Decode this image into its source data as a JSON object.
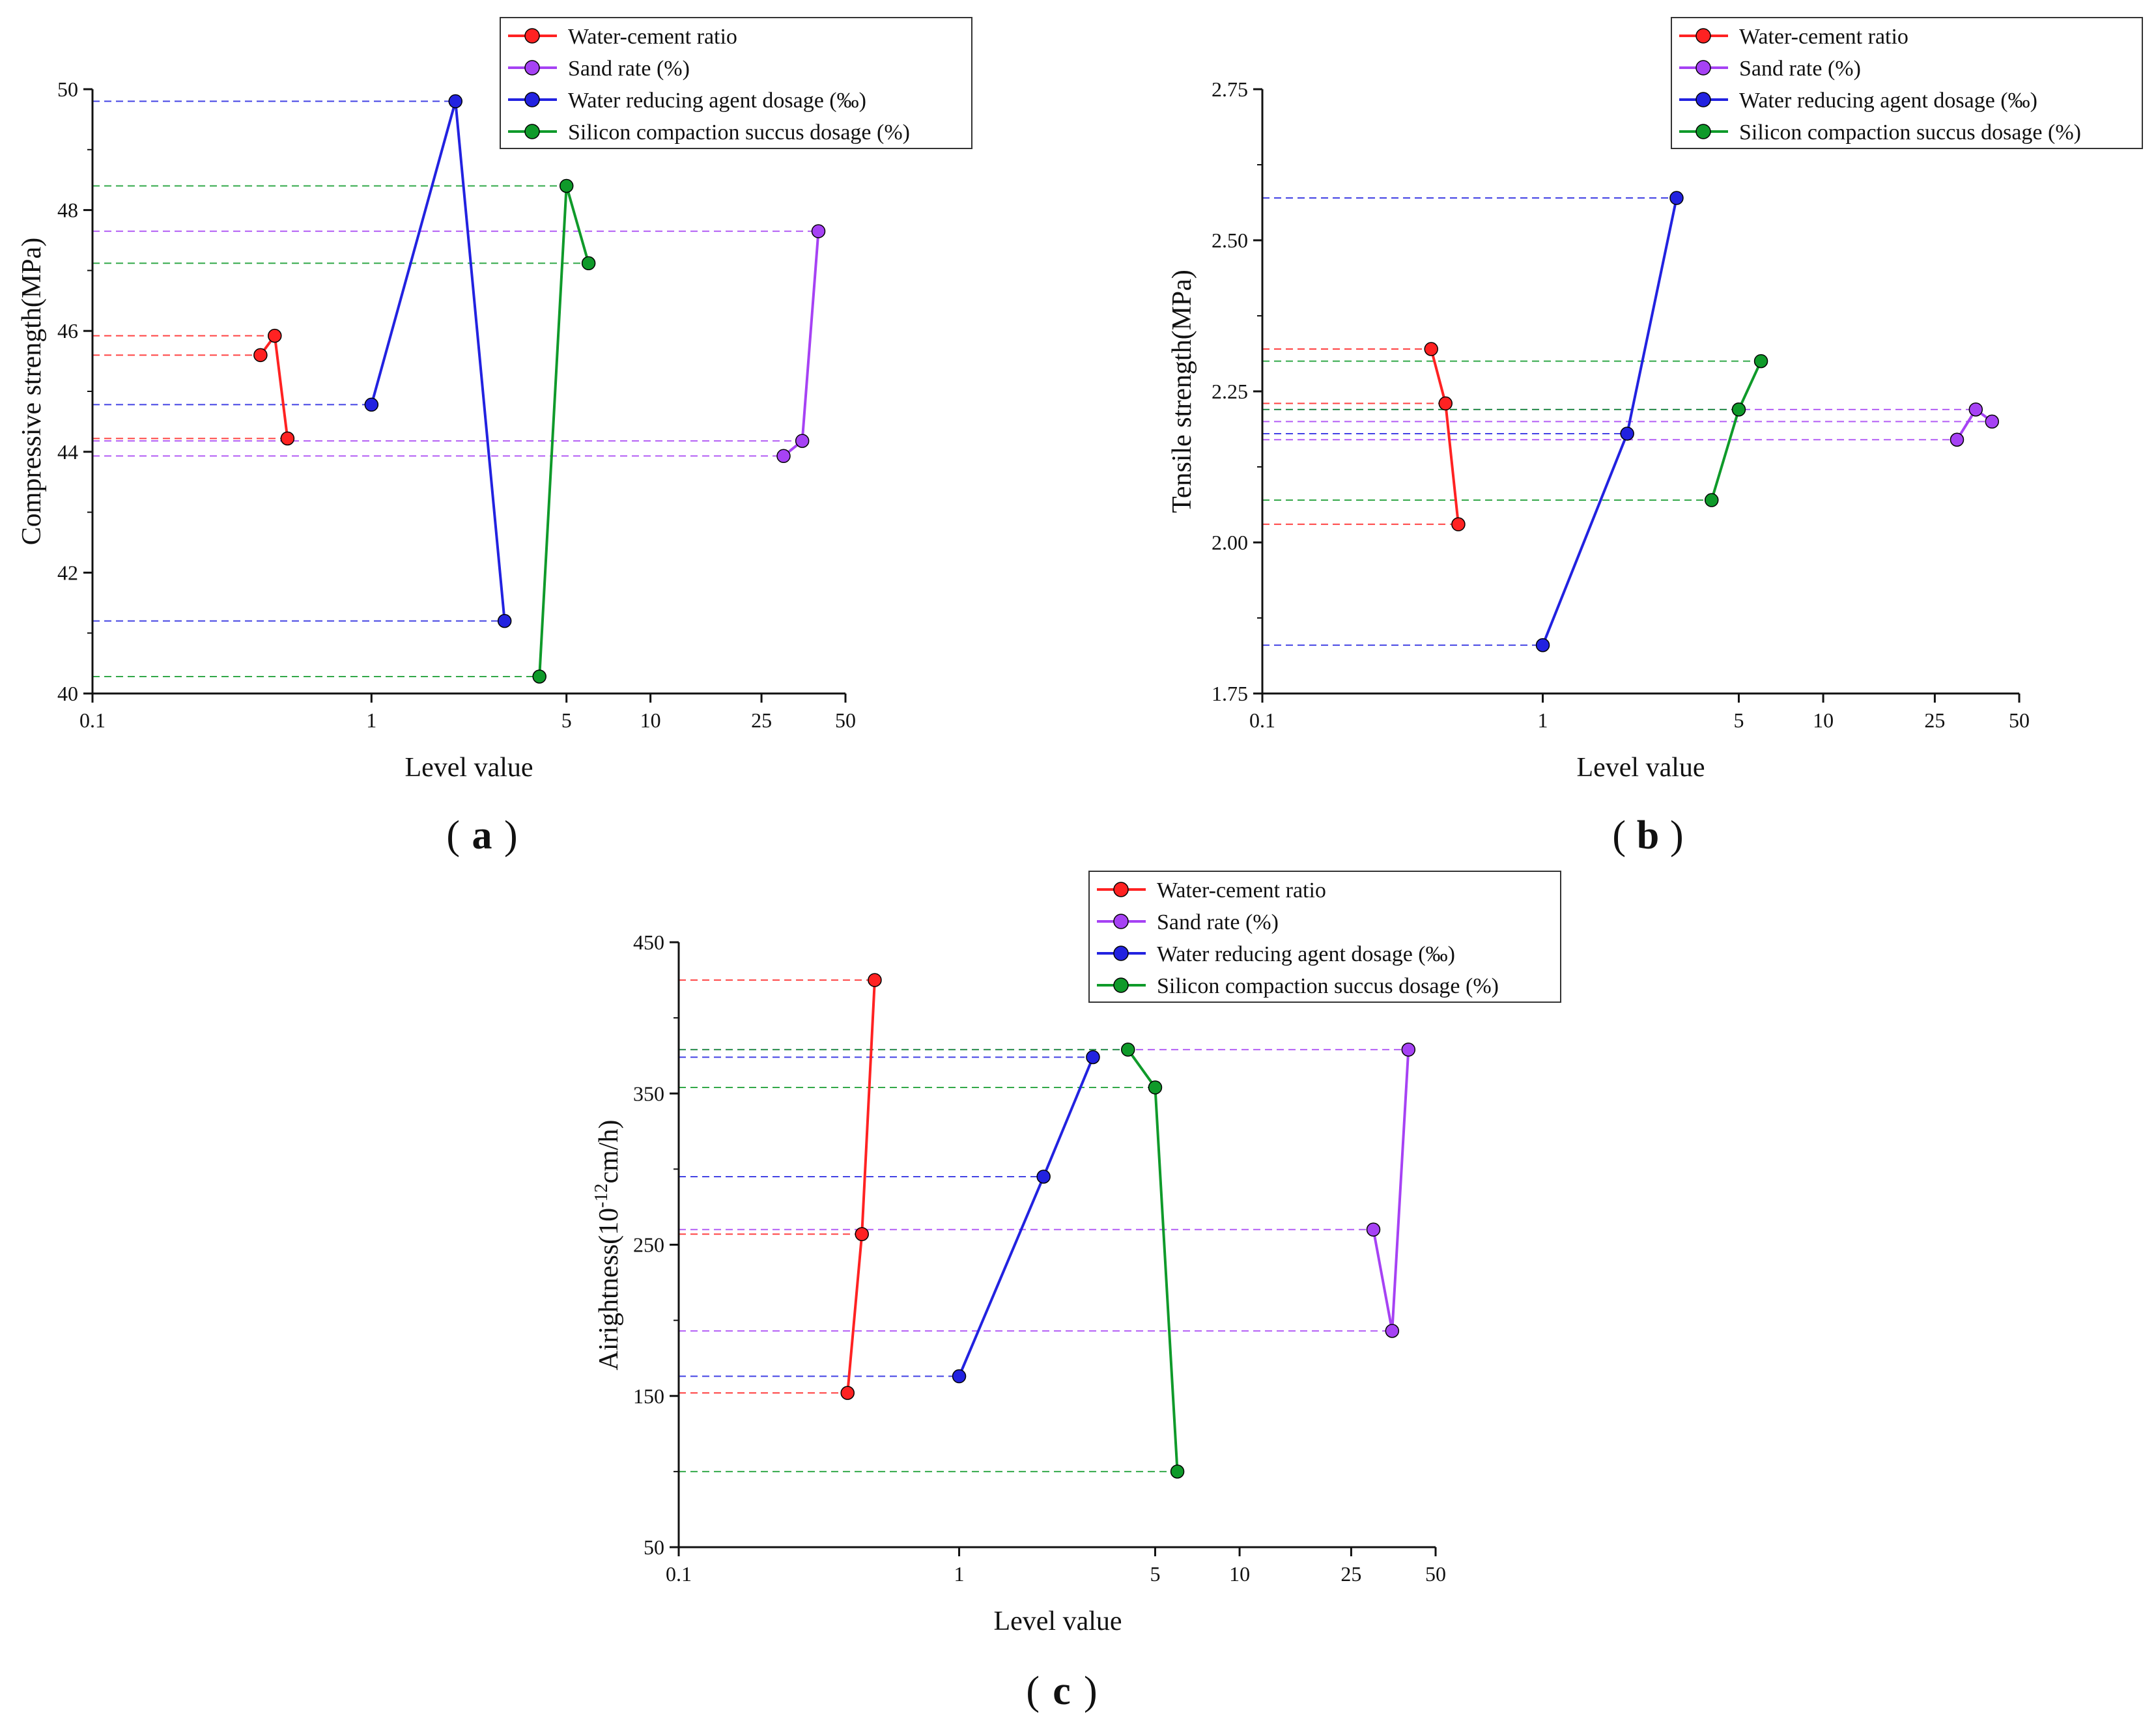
{
  "chart_data": [
    {
      "panel": "a",
      "type": "line",
      "xscale": "log",
      "xlabel": "Level value",
      "ylabel": "Compressive strength(MPa)",
      "xticks": [
        0.1,
        1,
        5,
        10,
        25,
        50
      ],
      "xtick_labels": [
        "0.1",
        "1",
        "5",
        "10",
        "25",
        "50"
      ],
      "yticks": [
        40,
        42,
        44,
        46,
        48,
        50
      ],
      "ytick_labels": [
        "40",
        "42",
        "44",
        "46",
        "48",
        "50"
      ],
      "ylim": [
        40,
        50
      ],
      "legend_position": "top-right",
      "series": [
        {
          "name": "Water-cement ratio",
          "color": "#ff2222",
          "x": [
            0.4,
            0.45,
            0.5
          ],
          "y": [
            45.6,
            45.92,
            44.22
          ]
        },
        {
          "name": "Sand rate (%)",
          "color": "#a642f4",
          "x": [
            30,
            35,
            40
          ],
          "y": [
            43.93,
            44.18,
            47.65
          ]
        },
        {
          "name": "Water reducing agent dosage (‰)",
          "color": "#2222e0",
          "x": [
            1,
            2,
            3
          ],
          "y": [
            44.78,
            49.8,
            41.2
          ]
        },
        {
          "name": "Silicon compaction succus dosage (%)",
          "color": "#0f9a2a",
          "x": [
            4,
            5,
            6
          ],
          "y": [
            40.28,
            48.4,
            47.12
          ]
        }
      ]
    },
    {
      "panel": "b",
      "type": "line",
      "xscale": "log",
      "xlabel": "Level value",
      "ylabel": "Tensile strength(MPa)",
      "xticks": [
        0.1,
        1,
        5,
        10,
        25,
        50
      ],
      "xtick_labels": [
        "0.1",
        "1",
        "5",
        "10",
        "25",
        "50"
      ],
      "yticks": [
        1.75,
        2.0,
        2.25,
        2.5,
        2.75
      ],
      "ytick_labels": [
        "1.75",
        "2.00",
        "2.25",
        "2.50",
        "2.75"
      ],
      "ylim": [
        1.75,
        2.75
      ],
      "legend_position": "top-right",
      "series": [
        {
          "name": "Water-cement ratio",
          "color": "#ff2222",
          "x": [
            0.4,
            0.45,
            0.5
          ],
          "y": [
            2.32,
            2.23,
            2.03
          ]
        },
        {
          "name": "Sand rate (%)",
          "color": "#a642f4",
          "x": [
            30,
            35,
            40
          ],
          "y": [
            2.17,
            2.22,
            2.2
          ]
        },
        {
          "name": "Water reducing agent dosage (‰)",
          "color": "#2222e0",
          "x": [
            1,
            2,
            3
          ],
          "y": [
            1.83,
            2.18,
            2.57
          ]
        },
        {
          "name": "Silicon compaction succus dosage (%)",
          "color": "#0f9a2a",
          "x": [
            4,
            5,
            6
          ],
          "y": [
            2.07,
            2.22,
            2.3
          ]
        }
      ]
    },
    {
      "panel": "c",
      "type": "line",
      "xscale": "log",
      "xlabel": "Level value",
      "ylabel_parts": [
        "Airightness(10",
        "-12",
        "cm/h)"
      ],
      "xticks": [
        0.1,
        1,
        5,
        10,
        25,
        50
      ],
      "xtick_labels": [
        "0.1",
        "1",
        "5",
        "10",
        "25",
        "50"
      ],
      "yticks": [
        50,
        150,
        250,
        350,
        450
      ],
      "ytick_labels": [
        "50",
        "150",
        "250",
        "350",
        "450"
      ],
      "ylim": [
        50,
        450
      ],
      "legend_position": "top-right",
      "series": [
        {
          "name": "Water-cement ratio",
          "color": "#ff2222",
          "x": [
            0.4,
            0.45,
            0.5
          ],
          "y": [
            152,
            257,
            425
          ]
        },
        {
          "name": "Sand rate (%)",
          "color": "#a642f4",
          "x": [
            30,
            35,
            40
          ],
          "y": [
            260,
            193,
            379
          ]
        },
        {
          "name": "Water reducing agent dosage (‰)",
          "color": "#2222e0",
          "x": [
            1,
            2,
            3
          ],
          "y": [
            163,
            295,
            374
          ]
        },
        {
          "name": "Silicon compaction succus dosage (%)",
          "color": "#0f9a2a",
          "x": [
            4,
            5,
            6
          ],
          "y": [
            379,
            354,
            100
          ]
        }
      ]
    }
  ]
}
